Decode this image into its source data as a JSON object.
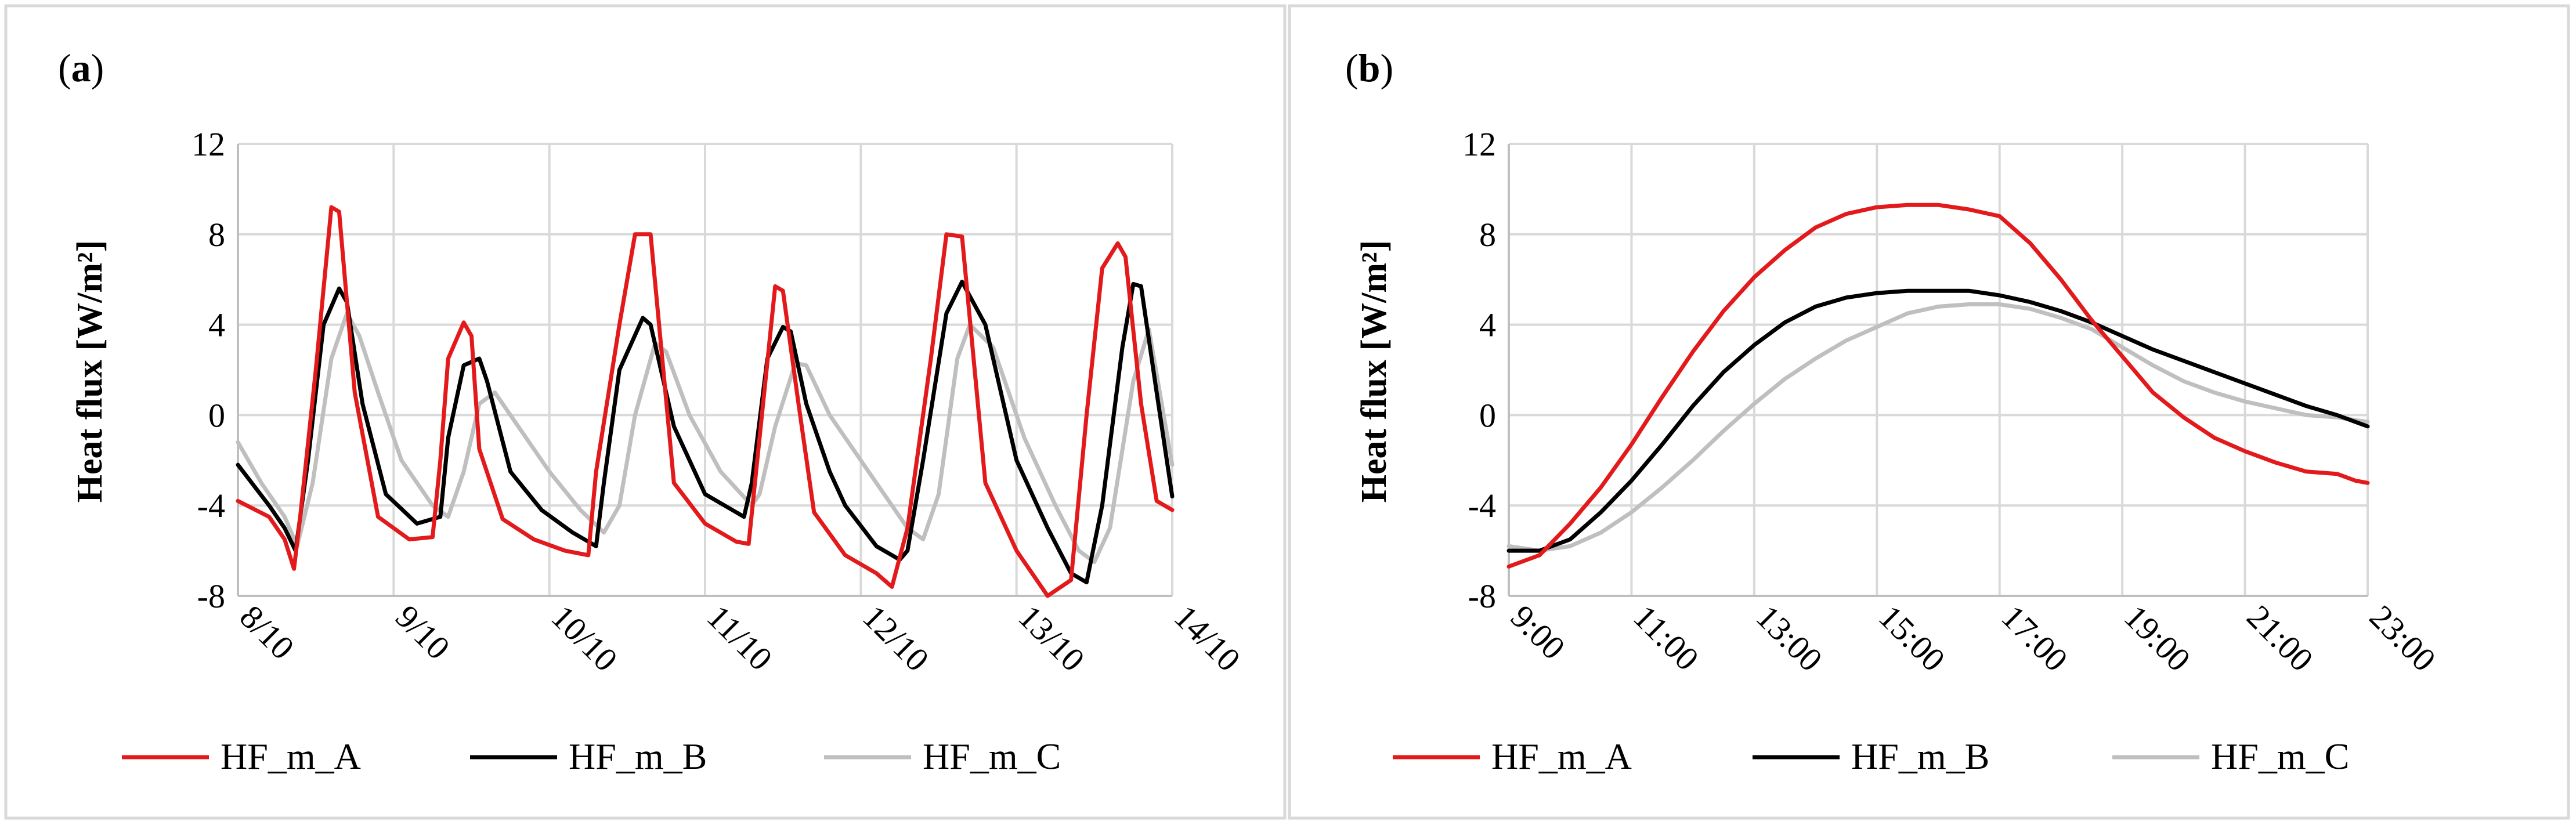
{
  "chart_data": [
    {
      "panel": "a",
      "type": "line",
      "ylabel": "Heat flux [W/m²]",
      "ylim": [
        -8,
        12
      ],
      "yticks": [
        -8,
        -4,
        0,
        4,
        8,
        12
      ],
      "xlim": [
        0,
        6
      ],
      "xticks": [
        0,
        1,
        2,
        3,
        4,
        5,
        6
      ],
      "xtick_labels": [
        "8/10",
        "9/10",
        "10/10",
        "11/10",
        "12/10",
        "13/10",
        "14/10"
      ],
      "legend": "bottom",
      "series": [
        {
          "name": "HF_m_A",
          "color": "#e31a1c",
          "x": [
            0,
            0.2,
            0.3,
            0.36,
            0.4,
            0.5,
            0.6,
            0.65,
            0.75,
            0.9,
            1.1,
            1.25,
            1.3,
            1.35,
            1.45,
            1.5,
            1.55,
            1.7,
            1.9,
            2.1,
            2.25,
            2.3,
            2.45,
            2.55,
            2.65,
            2.8,
            3.0,
            3.2,
            3.28,
            3.35,
            3.45,
            3.5,
            3.6,
            3.7,
            3.9,
            4.1,
            4.2,
            4.3,
            4.45,
            4.55,
            4.65,
            4.8,
            5.0,
            5.2,
            5.35,
            5.45,
            5.55,
            5.65,
            5.7,
            5.8,
            5.9,
            6.0
          ],
          "y": [
            -3.8,
            -4.5,
            -5.5,
            -6.8,
            -4.5,
            2,
            9.2,
            9,
            1,
            -4.5,
            -5.5,
            -5.4,
            -2,
            2.5,
            4.1,
            3.5,
            -1.5,
            -4.6,
            -5.5,
            -6,
            -6.2,
            -2.5,
            4,
            8,
            8,
            -3,
            -4.8,
            -5.6,
            -5.7,
            -1,
            5.7,
            5.5,
            0.5,
            -4.3,
            -6.2,
            -7,
            -7.6,
            -5,
            2.5,
            8,
            7.9,
            -3,
            -6,
            -8,
            -7.3,
            0,
            6.5,
            7.6,
            7,
            0.5,
            -3.8,
            -4.2
          ]
        },
        {
          "name": "HF_m_B",
          "color": "#000000",
          "x": [
            0,
            0.2,
            0.3,
            0.37,
            0.45,
            0.55,
            0.65,
            0.7,
            0.8,
            0.95,
            1.15,
            1.3,
            1.35,
            1.45,
            1.55,
            1.6,
            1.75,
            1.95,
            2.15,
            2.3,
            2.35,
            2.45,
            2.6,
            2.65,
            2.8,
            3.0,
            3.25,
            3.3,
            3.4,
            3.5,
            3.55,
            3.65,
            3.8,
            3.9,
            4.1,
            4.25,
            4.3,
            4.4,
            4.55,
            4.65,
            4.8,
            5.0,
            5.2,
            5.35,
            5.45,
            5.55,
            5.68,
            5.75,
            5.8,
            5.9,
            6.0
          ],
          "y": [
            -2.2,
            -4,
            -5,
            -6,
            -2,
            4,
            5.6,
            5,
            0.5,
            -3.5,
            -4.8,
            -4.5,
            -1,
            2.2,
            2.5,
            1.5,
            -2.5,
            -4.2,
            -5.2,
            -5.8,
            -3,
            2,
            4.3,
            4,
            -0.5,
            -3.5,
            -4.5,
            -3,
            2.5,
            3.9,
            3.7,
            0.5,
            -2.5,
            -4,
            -5.8,
            -6.4,
            -6,
            -2,
            4.5,
            5.9,
            4,
            -2,
            -5,
            -7,
            -7.4,
            -4,
            3,
            5.8,
            5.7,
            1,
            -3.6
          ]
        },
        {
          "name": "HF_m_C",
          "color": "#bfbfbf",
          "x": [
            0,
            0.15,
            0.3,
            0.38,
            0.48,
            0.6,
            0.7,
            0.78,
            0.9,
            1.05,
            1.25,
            1.35,
            1.45,
            1.55,
            1.65,
            1.8,
            2.0,
            2.2,
            2.35,
            2.45,
            2.55,
            2.68,
            2.75,
            2.9,
            3.1,
            3.3,
            3.35,
            3.45,
            3.58,
            3.65,
            3.8,
            4.0,
            4.2,
            4.3,
            4.4,
            4.5,
            4.62,
            4.7,
            4.85,
            5.05,
            5.25,
            5.4,
            5.5,
            5.6,
            5.75,
            5.85,
            6.0
          ],
          "y": [
            -1.2,
            -3,
            -4.5,
            -5.8,
            -3,
            2.5,
            4.5,
            3.5,
            1,
            -2,
            -4,
            -4.5,
            -2.5,
            0.5,
            1,
            -0.5,
            -2.5,
            -4.2,
            -5.2,
            -4,
            0,
            3.2,
            2.8,
            0,
            -2.5,
            -4,
            -3.5,
            -0.5,
            2.3,
            2.2,
            0,
            -2,
            -4,
            -5,
            -5.5,
            -3.5,
            2.5,
            4,
            3,
            -1,
            -4,
            -6,
            -6.5,
            -5,
            1.5,
            3.8,
            -2.2
          ]
        }
      ]
    },
    {
      "panel": "b",
      "type": "line",
      "ylabel": "Heat flux [W/m²]",
      "ylim": [
        -8,
        12
      ],
      "yticks": [
        -8,
        -4,
        0,
        4,
        8,
        12
      ],
      "xlim": [
        9,
        23
      ],
      "xticks": [
        9,
        11,
        13,
        15,
        17,
        19,
        21,
        23
      ],
      "xtick_labels": [
        "9:00",
        "11:00",
        "13:00",
        "15:00",
        "17:00",
        "19:00",
        "21:00",
        "23:00"
      ],
      "legend": "bottom",
      "series": [
        {
          "name": "HF_m_A",
          "color": "#e31a1c",
          "x": [
            9,
            9.5,
            10,
            10.5,
            11,
            11.5,
            12,
            12.5,
            13,
            13.5,
            14,
            14.5,
            15,
            15.5,
            16,
            16.5,
            17,
            17.5,
            18,
            18.5,
            19,
            19.5,
            20,
            20.5,
            21,
            21.5,
            22,
            22.5,
            22.8,
            23
          ],
          "y": [
            -6.7,
            -6.2,
            -4.8,
            -3.2,
            -1.3,
            0.8,
            2.8,
            4.6,
            6.1,
            7.3,
            8.3,
            8.9,
            9.2,
            9.3,
            9.3,
            9.1,
            8.8,
            7.6,
            6,
            4.2,
            2.6,
            1,
            -0.1,
            -1,
            -1.6,
            -2.1,
            -2.5,
            -2.6,
            -2.9,
            -3
          ]
        },
        {
          "name": "HF_m_B",
          "color": "#000000",
          "x": [
            9,
            9.5,
            10,
            10.5,
            11,
            11.5,
            12,
            12.5,
            13,
            13.5,
            14,
            14.5,
            15,
            15.5,
            16,
            16.5,
            17,
            17.5,
            18,
            18.5,
            19,
            19.5,
            20,
            20.5,
            21,
            21.5,
            22,
            22.5,
            23
          ],
          "y": [
            -6,
            -6,
            -5.5,
            -4.3,
            -2.9,
            -1.3,
            0.4,
            1.9,
            3.1,
            4.1,
            4.8,
            5.2,
            5.4,
            5.5,
            5.5,
            5.5,
            5.3,
            5,
            4.6,
            4.1,
            3.5,
            2.9,
            2.4,
            1.9,
            1.4,
            0.9,
            0.4,
            0,
            -0.5
          ]
        },
        {
          "name": "HF_m_C",
          "color": "#bfbfbf",
          "x": [
            9,
            9.5,
            10,
            10.5,
            11,
            11.5,
            12,
            12.5,
            13,
            13.5,
            14,
            14.5,
            15,
            15.5,
            16,
            16.5,
            17,
            17.5,
            18,
            18.5,
            19,
            19.5,
            20,
            20.5,
            21,
            21.5,
            22,
            22.5,
            23
          ],
          "y": [
            -5.8,
            -6,
            -5.8,
            -5.2,
            -4.3,
            -3.2,
            -2,
            -0.7,
            0.5,
            1.6,
            2.5,
            3.3,
            3.9,
            4.5,
            4.8,
            4.9,
            4.9,
            4.7,
            4.3,
            3.8,
            3,
            2.2,
            1.5,
            1,
            0.6,
            0.3,
            0,
            -0.1,
            -0.3
          ]
        }
      ]
    }
  ],
  "panels": [
    {
      "label": "(a)",
      "letter": "a"
    },
    {
      "label": "(b)",
      "letter": "b"
    }
  ]
}
